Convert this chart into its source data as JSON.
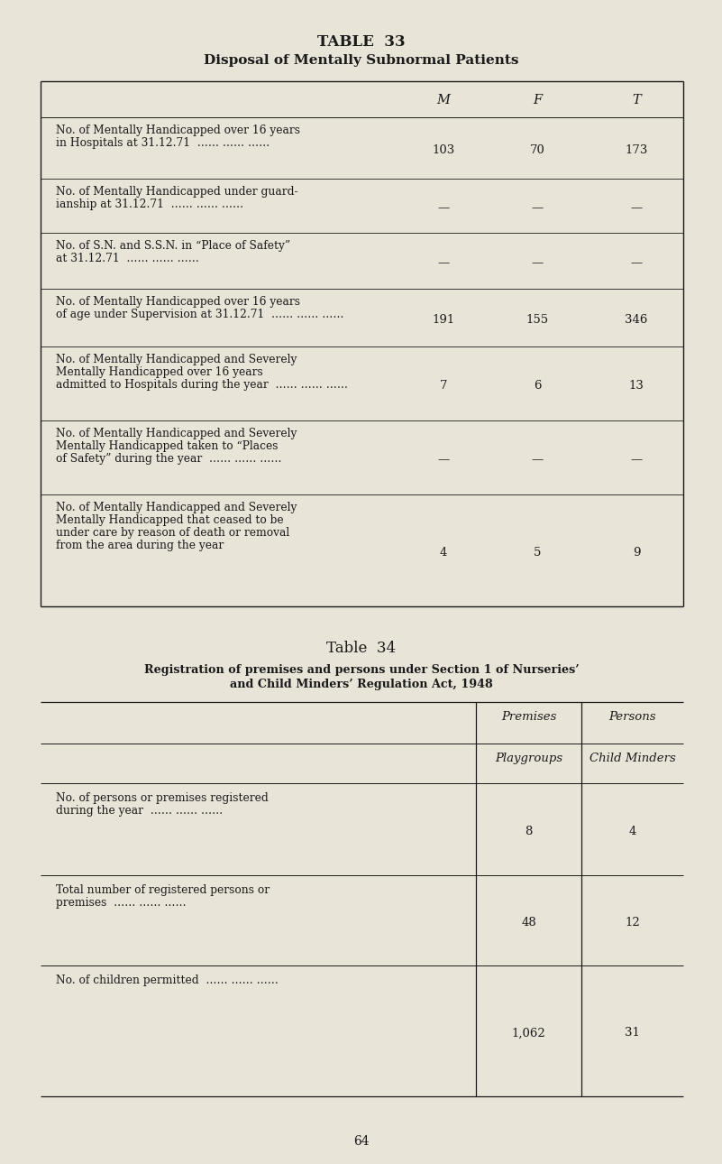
{
  "bg_color": "#e8e4d8",
  "text_color": "#1a1a1a",
  "page_number": "64",
  "table33": {
    "title_line1": "TABLE  33",
    "title_line2": "Disposal of Mentally Subnormal Patients",
    "col_headers": [
      "M",
      "F",
      "T"
    ],
    "rows": [
      {
        "label_lines": [
          "No. of Mentally Handicapped over 16 years",
          "in Hospitals at 31.12.71"
        ],
        "dots": true,
        "values": [
          "103",
          "70",
          "173"
        ]
      },
      {
        "label_lines": [
          "No. of Mentally Handicapped under guard-",
          "ianship at 31.12.71"
        ],
        "dots": true,
        "values": [
          "—",
          "—",
          "—"
        ]
      },
      {
        "label_lines": [
          "No. of S.N. and S.S.N. in “Place of Safety”",
          "at 31.12.71"
        ],
        "dots": true,
        "values": [
          "—",
          "—",
          "—"
        ]
      },
      {
        "label_lines": [
          "No. of Mentally Handicapped over 16 years",
          "of age under Supervision at 31.12.71"
        ],
        "dots": true,
        "values": [
          "191",
          "155",
          "346"
        ]
      },
      {
        "label_lines": [
          "No. of Mentally Handicapped and Severely",
          "Mentally Handicapped over 16 years",
          "admitted to Hospitals during the year"
        ],
        "dots": true,
        "values": [
          "7",
          "6",
          "13"
        ]
      },
      {
        "label_lines": [
          "No. of Mentally Handicapped and Severely",
          "Mentally Handicapped taken to “Places",
          "of Safety” during the year"
        ],
        "dots": true,
        "values": [
          "—",
          "—",
          "—"
        ]
      },
      {
        "label_lines": [
          "No. of Mentally Handicapped and Severely",
          "Mentally Handicapped that ceased to be",
          "under care by reason of death or removal",
          "from the area during the year"
        ],
        "dots": false,
        "values": [
          "4",
          "5",
          "9"
        ]
      }
    ]
  },
  "table34": {
    "title_line1": "Table  34",
    "title_line2": "Registration of premises and persons under Section 1 of Nurseries’",
    "title_line3": "and Child Minders’ Regulation Act, 1948",
    "col_header1": "Premises",
    "col_header2": "Persons",
    "sub_header1": "Playgroups",
    "sub_header2": "Child Minders",
    "rows": [
      {
        "label_lines": [
          "No. of persons or premises registered",
          "during the year"
        ],
        "dots": true,
        "values": [
          "8",
          "4"
        ]
      },
      {
        "label_lines": [
          "Total number of registered persons or",
          "premises"
        ],
        "dots": true,
        "values": [
          "48",
          "12"
        ]
      },
      {
        "label_lines": [
          "No. of children permitted"
        ],
        "dots": true,
        "values": [
          "1,062",
          "31"
        ]
      }
    ]
  }
}
